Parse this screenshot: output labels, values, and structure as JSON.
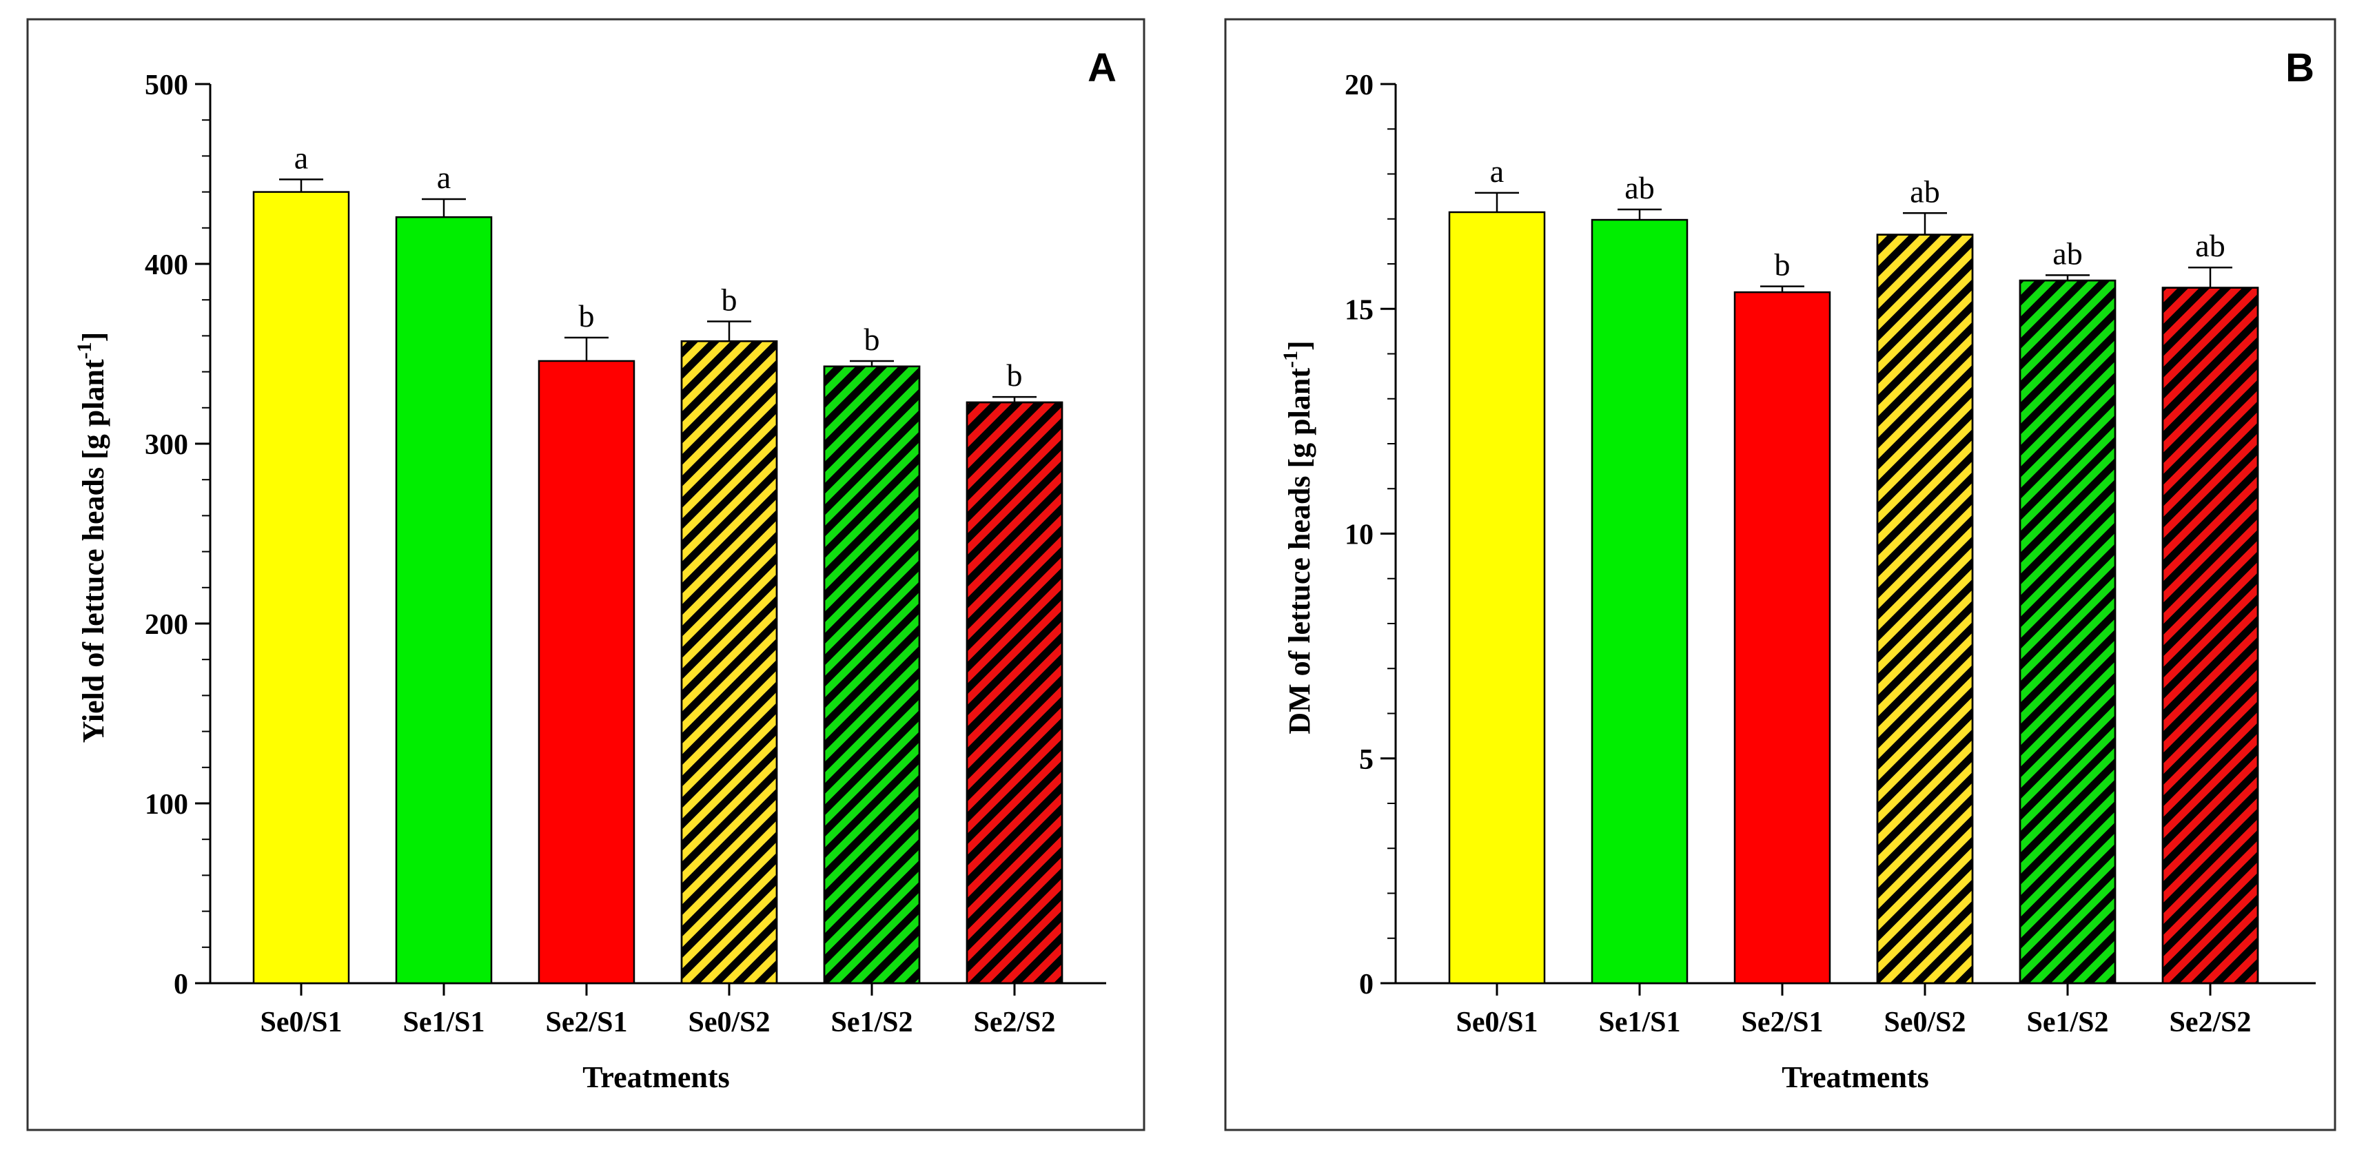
{
  "chart_data": [
    {
      "type": "bar",
      "panel_label": "A",
      "xlabel": "Treatments",
      "ylabel_main": "Yield of lettuce heads [g plant",
      "ylabel_sup": "-1",
      "ylabel_close": "]",
      "ylim": [
        0,
        500
      ],
      "yticks": [
        "0",
        "100",
        "200",
        "300",
        "400",
        "500"
      ],
      "categories": [
        "Se0/S1",
        "Se1/S1",
        "Se2/S1",
        "Se0/S2",
        "Se1/S2",
        "Se2/S2"
      ],
      "values": [
        440,
        426,
        346,
        357,
        343,
        323
      ],
      "errors": [
        7,
        10,
        13,
        11,
        3,
        3
      ],
      "significance": [
        "a",
        "a",
        "b",
        "b",
        "b",
        "b"
      ],
      "colors": [
        "#ffff00",
        "#00ee00",
        "#ff0000",
        "#ffe22a",
        "#11dd11",
        "#ee1111"
      ],
      "hatched": [
        false,
        false,
        false,
        true,
        true,
        true
      ]
    },
    {
      "type": "bar",
      "panel_label": "B",
      "xlabel": "Treatments",
      "ylabel_main": "DM of lettuce heads [g plant",
      "ylabel_sup": "-1",
      "ylabel_close": "]",
      "ylim": [
        0,
        20
      ],
      "yticks": [
        "0",
        "5",
        "10",
        "15",
        "20"
      ],
      "categories": [
        "Se0/S1",
        "Se1/S1",
        "Se2/S1",
        "Se0/S2",
        "Se1/S2",
        "Se2/S2"
      ],
      "values": [
        17.15,
        16.98,
        15.37,
        16.65,
        15.63,
        15.47
      ],
      "errors": [
        0.43,
        0.23,
        0.13,
        0.48,
        0.12,
        0.45
      ],
      "significance": [
        "a",
        "ab",
        "b",
        "ab",
        "ab",
        "ab"
      ],
      "colors": [
        "#ffff00",
        "#00ee00",
        "#ff0000",
        "#ffe22a",
        "#11dd11",
        "#ee1111"
      ],
      "hatched": [
        false,
        false,
        false,
        true,
        true,
        true
      ]
    }
  ]
}
